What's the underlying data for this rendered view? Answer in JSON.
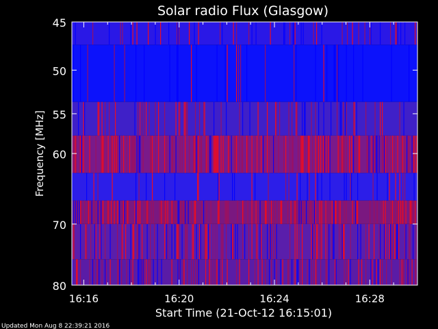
{
  "chart_data": {
    "type": "heatmap",
    "title": "Solar radio Flux (Glasgow)",
    "xlabel": "Start Time (21-Oct-12 16:15:01)",
    "ylabel": "Frequency [MHz]",
    "x_range_minutes": [
      15.5,
      30.0
    ],
    "x_ticks": [
      {
        "value": 16,
        "label": "16:16"
      },
      {
        "value": 20,
        "label": "16:20"
      },
      {
        "value": 24,
        "label": "16:24"
      },
      {
        "value": 28,
        "label": "16:28"
      }
    ],
    "ylim": [
      45,
      80
    ],
    "y_ticks": [
      {
        "value": 45,
        "label": "45"
      },
      {
        "value": 50,
        "label": "50"
      },
      {
        "value": 55,
        "label": "55"
      },
      {
        "value": 60,
        "label": "60"
      },
      {
        "value": 70,
        "label": "70"
      },
      {
        "value": 80,
        "label": "80"
      }
    ],
    "bands": [
      {
        "f0": 45.0,
        "f1": 47.3,
        "base": "#2a18e6",
        "red": 0.12
      },
      {
        "f0": 47.3,
        "f1": 53.6,
        "base": "#0c12fb",
        "red": 0.03
      },
      {
        "f0": 53.6,
        "f1": 57.7,
        "base": "#3f20c8",
        "red": 0.12
      },
      {
        "f0": 57.7,
        "f1": 62.6,
        "base": "#7a1a8a",
        "red": 0.4
      },
      {
        "f0": 62.6,
        "f1": 66.5,
        "base": "#2c1ee8",
        "red": 0.06
      },
      {
        "f0": 66.5,
        "f1": 70.0,
        "base": "#7a1880",
        "red": 0.38
      },
      {
        "f0": 70.0,
        "f1": 75.6,
        "base": "#5a1eab",
        "red": 0.26
      },
      {
        "f0": 75.6,
        "f1": 80.0,
        "base": "#5a1ca6",
        "red": 0.3
      }
    ]
  },
  "footer": {
    "updated": "Updated Mon Aug  8 22:39:21 2016"
  }
}
